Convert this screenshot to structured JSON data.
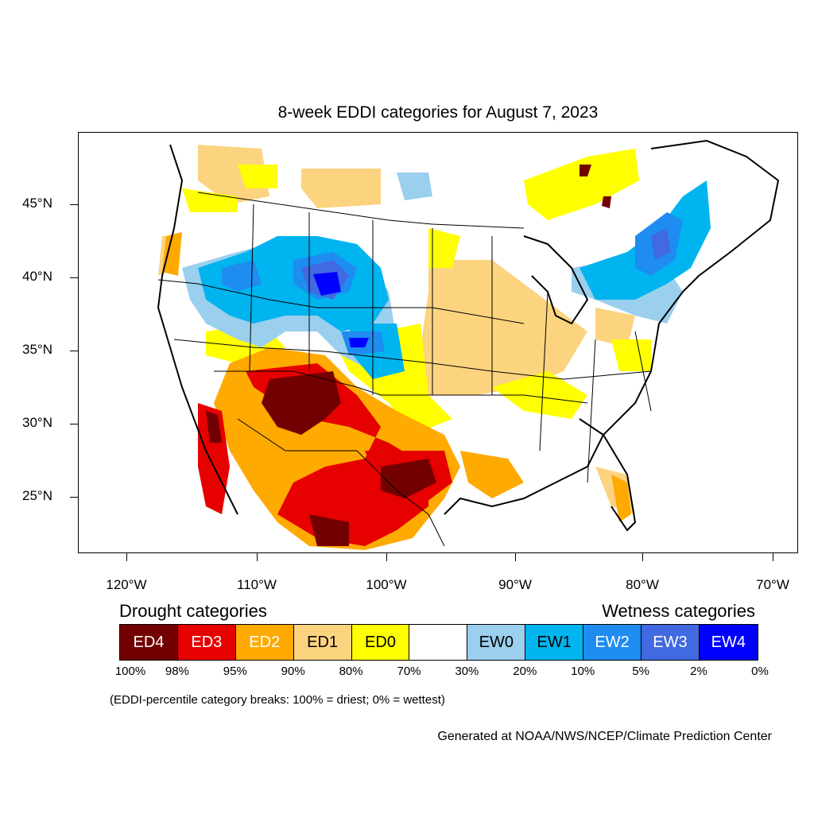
{
  "title": "8-week EDDI categories for August 7, 2023",
  "lat_labels": [
    "45°N",
    "40°N",
    "35°N",
    "30°N",
    "25°N"
  ],
  "lon_labels": [
    "120°W",
    "110°W",
    "100°W",
    "90°W",
    "80°W",
    "70°W"
  ],
  "legend": {
    "drought_heading": "Drought categories",
    "wetness_heading": "Wetness categories",
    "categories": [
      {
        "label": "ED4",
        "color": "#730000",
        "text_color": "#ffffff"
      },
      {
        "label": "ED3",
        "color": "#e60000",
        "text_color": "#ffffff"
      },
      {
        "label": "ED2",
        "color": "#ffaa00",
        "text_color": "#ffffff"
      },
      {
        "label": "ED1",
        "color": "#fcd37f",
        "text_color": "#000000"
      },
      {
        "label": "ED0",
        "color": "#ffff00",
        "text_color": "#000000"
      },
      {
        "label": "",
        "color": "#ffffff",
        "text_color": "#000000"
      },
      {
        "label": "EW0",
        "color": "#9bcfee",
        "text_color": "#000000"
      },
      {
        "label": "EW1",
        "color": "#00b4f0",
        "text_color": "#000000"
      },
      {
        "label": "EW2",
        "color": "#1e8cf0",
        "text_color": "#ffffff"
      },
      {
        "label": "EW3",
        "color": "#4169e1",
        "text_color": "#ffffff"
      },
      {
        "label": "EW4",
        "color": "#0000ff",
        "text_color": "#ffffff"
      }
    ],
    "percentiles": [
      "100%",
      "98%",
      "95%",
      "90%",
      "80%",
      "70%",
      "30%",
      "20%",
      "10%",
      "5%",
      "2%",
      "0%"
    ]
  },
  "note": "(EDDI-percentile category breaks: 100% = driest; 0% = wettest)",
  "credit": "Generated at NOAA/NWS/NCEP/Climate Prediction Center"
}
